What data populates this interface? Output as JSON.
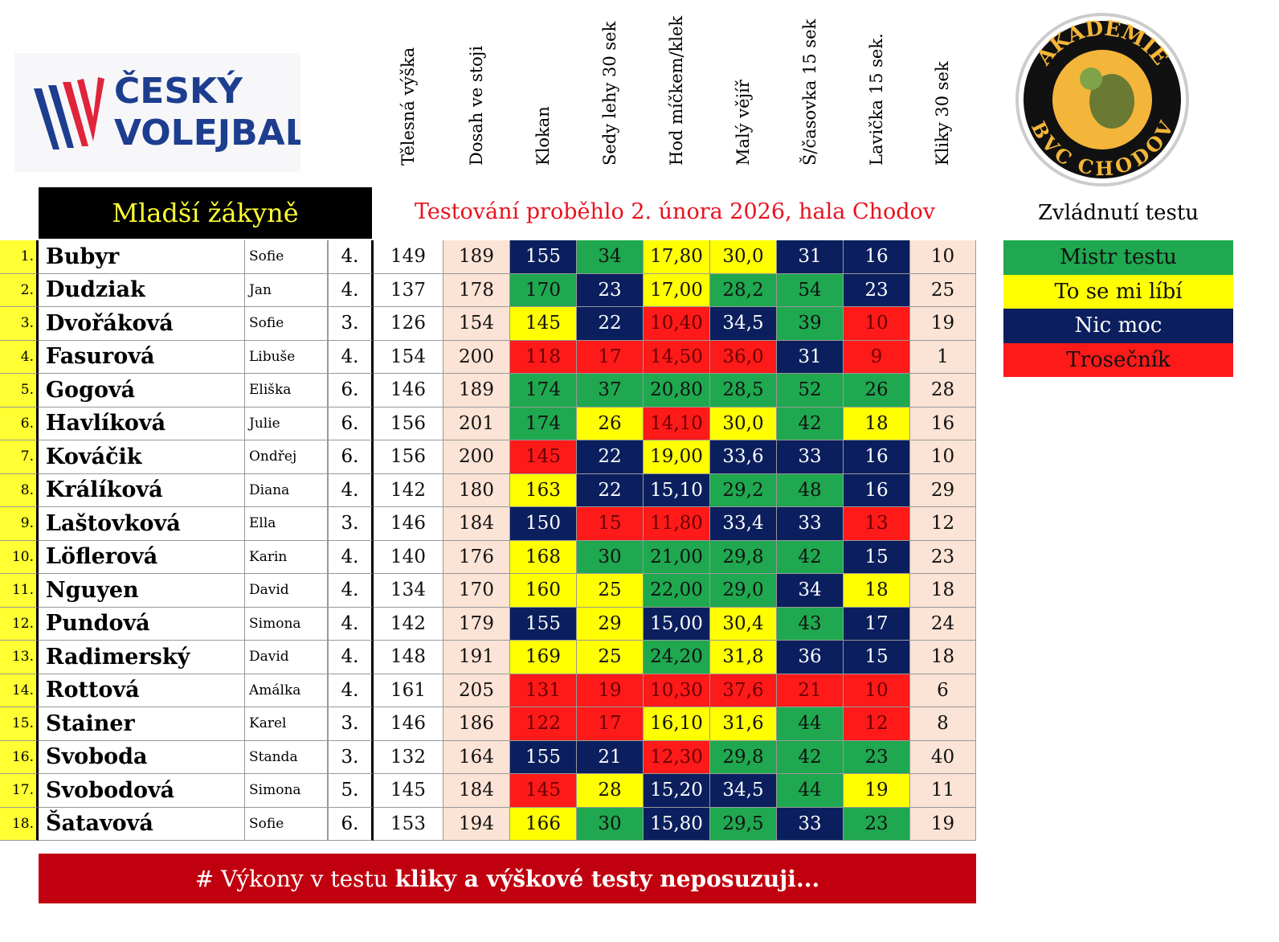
{
  "header": {
    "logo_left": [
      "ČESKÝ",
      "VOLEJBAL"
    ],
    "logo_right": {
      "top": "AKADEMIE",
      "bottom": "BVC CHODOV"
    },
    "group": "Mladší žákyně",
    "note": "Testování proběhlo 2. února 2026, hala Chodov",
    "legend_title": "Zvládnutí  testu"
  },
  "legend": [
    {
      "label": "Mistr testu",
      "color": "#1fa84f"
    },
    {
      "label": "To se mi líbí",
      "color": "#ffff00"
    },
    {
      "label": "Nic moc",
      "color": "#0b1f5e"
    },
    {
      "label": "Trosečník",
      "color": "#ff1a1a"
    }
  ],
  "table": {
    "columns": [
      "Tělesná výška",
      "Dosah ve stoji",
      "Klokan",
      "Sedy lehy 30 sek",
      "Hod míčkem/klek",
      "Malý vějíř",
      "Š/časovka 15 sek",
      "Lavička 15 sek.",
      "Kliky 30 sek"
    ],
    "rows": [
      {
        "rank": "1.",
        "surname": "Bubyr",
        "first": "Sofie",
        "grade": "4.",
        "cells": [
          "149",
          "189",
          "155",
          "34",
          "17,80",
          "30,0",
          "31",
          "16",
          "10"
        ],
        "colors": [
          "#0b1f5e",
          "#1fa84f",
          "#ffff00",
          "#ffff00",
          "#0b1f5e",
          "#0b1f5e"
        ]
      },
      {
        "rank": "2.",
        "surname": "Dudziak",
        "first": "Jan",
        "grade": "4.",
        "cells": [
          "137",
          "178",
          "170",
          "23",
          "17,00",
          "28,2",
          "54",
          "23",
          "25"
        ],
        "colors": [
          "#1fa84f",
          "#0b1f5e",
          "#ffff00",
          "#1fa84f",
          "#1fa84f",
          "#0b1f5e"
        ]
      },
      {
        "rank": "3.",
        "surname": "Dvořáková",
        "first": "Sofie",
        "grade": "3.",
        "cells": [
          "126",
          "154",
          "145",
          "22",
          "10,40",
          "34,5",
          "39",
          "10",
          "19"
        ],
        "colors": [
          "#ffff00",
          "#0b1f5e",
          "#ff1a1a",
          "#0b1f5e",
          "#1fa84f",
          "#ff1a1a"
        ]
      },
      {
        "rank": "4.",
        "surname": "Fasurová",
        "first": "Libuše",
        "grade": "4.",
        "cells": [
          "154",
          "200",
          "118",
          "17",
          "14,50",
          "36,0",
          "31",
          "9",
          "1"
        ],
        "colors": [
          "#ff1a1a",
          "#ff1a1a",
          "#ff1a1a",
          "#ff1a1a",
          "#0b1f5e",
          "#ff1a1a"
        ]
      },
      {
        "rank": "5.",
        "surname": "Gogová",
        "first": "Eliška",
        "grade": "6.",
        "cells": [
          "146",
          "189",
          "174",
          "37",
          "20,80",
          "28,5",
          "52",
          "26",
          "28"
        ],
        "colors": [
          "#1fa84f",
          "#1fa84f",
          "#1fa84f",
          "#1fa84f",
          "#1fa84f",
          "#1fa84f"
        ]
      },
      {
        "rank": "6.",
        "surname": "Havlíková",
        "first": "Julie",
        "grade": "6.",
        "cells": [
          "156",
          "201",
          "174",
          "26",
          "14,10",
          "30,0",
          "42",
          "18",
          "16"
        ],
        "colors": [
          "#1fa84f",
          "#ffff00",
          "#ff1a1a",
          "#ffff00",
          "#1fa84f",
          "#ffff00"
        ]
      },
      {
        "rank": "7.",
        "surname": "Kováčik",
        "first": "Ondřej",
        "grade": "6.",
        "cells": [
          "156",
          "200",
          "145",
          "22",
          "19,00",
          "33,6",
          "33",
          "16",
          "10"
        ],
        "colors": [
          "#ff1a1a",
          "#0b1f5e",
          "#ffff00",
          "#0b1f5e",
          "#0b1f5e",
          "#0b1f5e"
        ]
      },
      {
        "rank": "8.",
        "surname": "Králíková",
        "first": "Diana",
        "grade": "4.",
        "cells": [
          "142",
          "180",
          "163",
          "22",
          "15,10",
          "29,2",
          "48",
          "16",
          "29"
        ],
        "colors": [
          "#ffff00",
          "#0b1f5e",
          "#0b1f5e",
          "#1fa84f",
          "#1fa84f",
          "#0b1f5e"
        ]
      },
      {
        "rank": "9.",
        "surname": "Laštovková",
        "first": "Ella",
        "grade": "3.",
        "cells": [
          "146",
          "184",
          "150",
          "15",
          "11,80",
          "33,4",
          "33",
          "13",
          "12"
        ],
        "colors": [
          "#0b1f5e",
          "#ff1a1a",
          "#ff1a1a",
          "#0b1f5e",
          "#0b1f5e",
          "#ff1a1a"
        ]
      },
      {
        "rank": "10.",
        "surname": "Löflerová",
        "first": "Karin",
        "grade": "4.",
        "cells": [
          "140",
          "176",
          "168",
          "30",
          "21,00",
          "29,8",
          "42",
          "15",
          "23"
        ],
        "colors": [
          "#ffff00",
          "#1fa84f",
          "#1fa84f",
          "#1fa84f",
          "#1fa84f",
          "#0b1f5e"
        ]
      },
      {
        "rank": "11.",
        "surname": "Nguyen",
        "first": "David",
        "grade": "4.",
        "cells": [
          "134",
          "170",
          "160",
          "25",
          "22,00",
          "29,0",
          "34",
          "18",
          "18"
        ],
        "colors": [
          "#ffff00",
          "#ffff00",
          "#1fa84f",
          "#1fa84f",
          "#0b1f5e",
          "#ffff00"
        ]
      },
      {
        "rank": "12.",
        "surname": "Pundová",
        "first": "Simona",
        "grade": "4.",
        "cells": [
          "142",
          "179",
          "155",
          "29",
          "15,00",
          "30,4",
          "43",
          "17",
          "24"
        ],
        "colors": [
          "#0b1f5e",
          "#ffff00",
          "#0b1f5e",
          "#ffff00",
          "#1fa84f",
          "#0b1f5e"
        ]
      },
      {
        "rank": "13.",
        "surname": "Radimerský",
        "first": "David",
        "grade": "4.",
        "cells": [
          "148",
          "191",
          "169",
          "25",
          "24,20",
          "31,8",
          "36",
          "15",
          "18"
        ],
        "colors": [
          "#ffff00",
          "#ffff00",
          "#1fa84f",
          "#ffff00",
          "#0b1f5e",
          "#0b1f5e"
        ]
      },
      {
        "rank": "14.",
        "surname": "Rottová",
        "first": "Amálka",
        "grade": "4.",
        "cells": [
          "161",
          "205",
          "131",
          "19",
          "10,30",
          "37,6",
          "21",
          "10",
          "6"
        ],
        "colors": [
          "#ff1a1a",
          "#ff1a1a",
          "#ff1a1a",
          "#ff1a1a",
          "#ff1a1a",
          "#ff1a1a"
        ]
      },
      {
        "rank": "15.",
        "surname": "Stainer",
        "first": "Karel",
        "grade": "3.",
        "cells": [
          "146",
          "186",
          "122",
          "17",
          "16,10",
          "31,6",
          "44",
          "12",
          "8"
        ],
        "colors": [
          "#ff1a1a",
          "#ff1a1a",
          "#ffff00",
          "#ffff00",
          "#1fa84f",
          "#ff1a1a"
        ]
      },
      {
        "rank": "16.",
        "surname": "Svoboda",
        "first": "Standa",
        "grade": "3.",
        "cells": [
          "132",
          "164",
          "155",
          "21",
          "12,30",
          "29,8",
          "42",
          "23",
          "40"
        ],
        "colors": [
          "#0b1f5e",
          "#0b1f5e",
          "#ff1a1a",
          "#1fa84f",
          "#1fa84f",
          "#1fa84f"
        ]
      },
      {
        "rank": "17.",
        "surname": "Svobodová",
        "first": "Simona",
        "grade": "5.",
        "cells": [
          "145",
          "184",
          "145",
          "28",
          "15,20",
          "34,5",
          "44",
          "19",
          "11"
        ],
        "colors": [
          "#ff1a1a",
          "#ffff00",
          "#0b1f5e",
          "#0b1f5e",
          "#1fa84f",
          "#ffff00"
        ]
      },
      {
        "rank": "18.",
        "surname": "Šatavová",
        "first": "Sofie",
        "grade": "6.",
        "cells": [
          "153",
          "194",
          "166",
          "30",
          "15,80",
          "29,5",
          "33",
          "23",
          "19"
        ],
        "colors": [
          "#ffff00",
          "#1fa84f",
          "#0b1f5e",
          "#1fa84f",
          "#0b1f5e",
          "#1fa84f"
        ]
      }
    ]
  },
  "footer": {
    "text": "# Výkony v testu ",
    "bold": "kliky a výškové testy neposuzuji..."
  }
}
